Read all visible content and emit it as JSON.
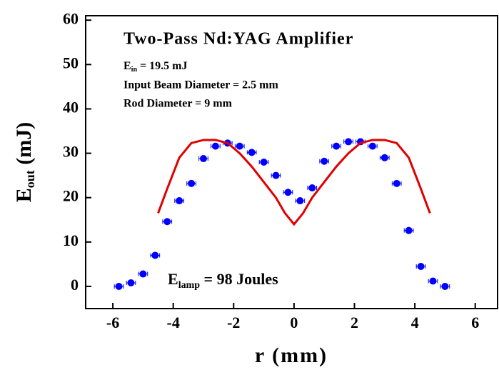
{
  "chart_data": {
    "type": "scatter",
    "title": "Two-Pass Nd:YAG Amplifier",
    "annotations": [
      {
        "text": "E",
        "sub": "in",
        "rest": " = 19.5  mJ"
      },
      {
        "text": "Input Beam Diameter = 2.5 mm"
      },
      {
        "text": "Rod Diameter = 9 mm"
      },
      {
        "text": "E",
        "sub": "lamp",
        "rest": " = 98 Joules"
      }
    ],
    "x_label": "r (mm)",
    "y_label": {
      "text": "E",
      "sub": "out",
      "rest": " (mJ)"
    },
    "xlim": [
      -6.9,
      6.74
    ],
    "ylim": [
      -5,
      61
    ],
    "xticks": [
      -6,
      -4,
      -2,
      0,
      2,
      4,
      6
    ],
    "yticks": [
      0,
      10,
      20,
      30,
      40,
      50,
      60
    ],
    "series": [
      {
        "type": "scatter",
        "color": "#0000ff",
        "xerr": 0.15,
        "x": [
          -5.8,
          -5.4,
          -5.0,
          -4.6,
          -4.2,
          -3.8,
          -3.4,
          -3.0,
          -2.6,
          -2.2,
          -1.8,
          -1.4,
          -1.0,
          -0.6,
          -0.2,
          0.2,
          0.6,
          1.0,
          1.4,
          1.8,
          2.2,
          2.6,
          3.0,
          3.4,
          3.8,
          4.2,
          4.6,
          5.0
        ],
        "values": [
          0,
          0.8,
          2.8,
          7,
          14.6,
          19.3,
          23.2,
          28.8,
          31.6,
          32.3,
          31.6,
          30.2,
          28,
          25,
          21.2,
          19.3,
          22.2,
          28.2,
          31.6,
          32.6,
          32.6,
          31.6,
          29,
          23.2,
          12.6,
          4.5,
          1.2,
          0
        ]
      },
      {
        "type": "line",
        "color": "#e00000",
        "x": [
          -4.5,
          -4.2,
          -3.8,
          -3.4,
          -3.0,
          -2.6,
          -2.2,
          -1.8,
          -1.4,
          -1.0,
          -0.6,
          -0.3,
          0,
          0.3,
          0.6,
          1.0,
          1.4,
          1.8,
          2.2,
          2.6,
          3.0,
          3.4,
          3.8,
          4.2,
          4.5
        ],
        "values": [
          16.5,
          22,
          29,
          32.3,
          33,
          33,
          32.3,
          30,
          27,
          23.5,
          20,
          16.5,
          14,
          16.5,
          20,
          23.5,
          27,
          30,
          32.3,
          33,
          33,
          32.3,
          29,
          22,
          16.5
        ]
      }
    ]
  }
}
